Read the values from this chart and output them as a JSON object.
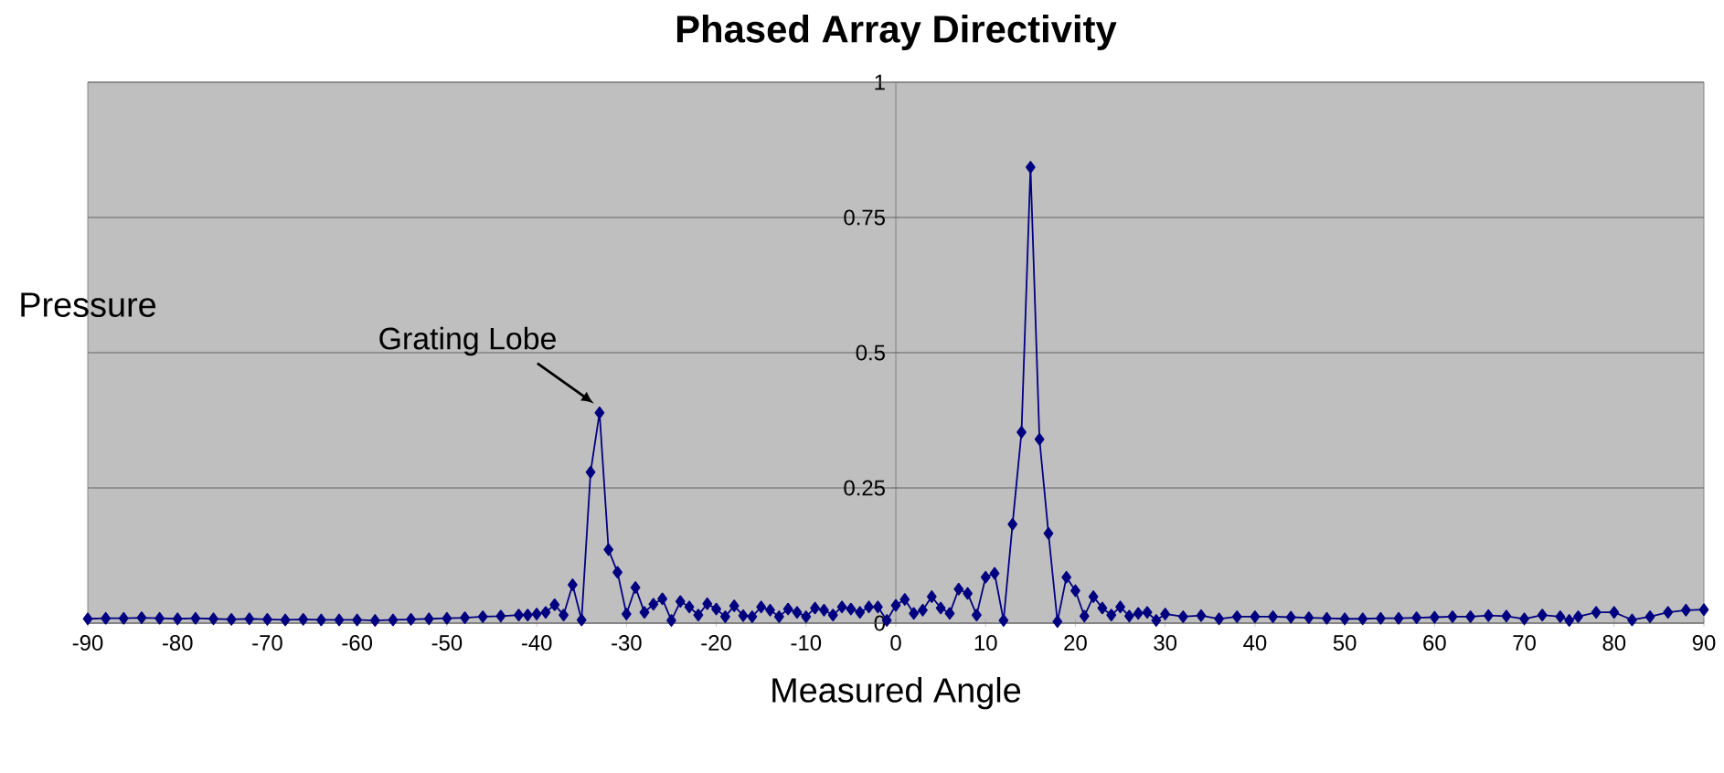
{
  "chart_data": {
    "type": "line",
    "title": "Phased Array Directivity",
    "xlabel": "Measured Angle",
    "ylabel": "Pressure",
    "annotations": [
      {
        "text": "Grating Lobe",
        "x": -33,
        "y": 0.389
      }
    ],
    "x": [
      -90,
      -88,
      -86,
      -84,
      -82,
      -80,
      -78,
      -76,
      -74,
      -72,
      -70,
      -68,
      -66,
      -64,
      -62,
      -60,
      -58,
      -56,
      -54,
      -52,
      -50,
      -48,
      -46,
      -44,
      -42,
      -41,
      -40,
      -39,
      -38,
      -37,
      -36,
      -35,
      -34,
      -33,
      -32,
      -31,
      -30,
      -29,
      -28,
      -27,
      -26,
      -25,
      -24,
      -23,
      -22,
      -21,
      -20,
      -19,
      -18,
      -17,
      -16,
      -15,
      -14,
      -13,
      -12,
      -11,
      -10,
      -9,
      -8,
      -7,
      -6,
      -5,
      -4,
      -3,
      -2,
      -1,
      0,
      1,
      2,
      3,
      4,
      5,
      6,
      7,
      8,
      9,
      10,
      11,
      12,
      13,
      14,
      15,
      16,
      17,
      18,
      19,
      20,
      21,
      22,
      23,
      24,
      25,
      26,
      27,
      28,
      29,
      30,
      32,
      34,
      36,
      38,
      40,
      42,
      44,
      46,
      48,
      50,
      52,
      54,
      56,
      58,
      60,
      62,
      64,
      66,
      68,
      70,
      72,
      74,
      75,
      76,
      78,
      80,
      82,
      84,
      86,
      88,
      90
    ],
    "series": [
      {
        "color": "#000080",
        "values": [
          0.008,
          0.009,
          0.009,
          0.01,
          0.009,
          0.008,
          0.009,
          0.008,
          0.007,
          0.008,
          0.007,
          0.006,
          0.007,
          0.006,
          0.006,
          0.006,
          0.005,
          0.006,
          0.007,
          0.008,
          0.009,
          0.01,
          0.012,
          0.013,
          0.015,
          0.015,
          0.017,
          0.02,
          0.034,
          0.015,
          0.071,
          0.006,
          0.279,
          0.389,
          0.136,
          0.094,
          0.017,
          0.066,
          0.02,
          0.035,
          0.045,
          0.005,
          0.04,
          0.03,
          0.015,
          0.036,
          0.026,
          0.012,
          0.032,
          0.014,
          0.012,
          0.03,
          0.024,
          0.012,
          0.026,
          0.02,
          0.012,
          0.028,
          0.024,
          0.015,
          0.03,
          0.026,
          0.02,
          0.03,
          0.03,
          0.005,
          0.033,
          0.044,
          0.018,
          0.024,
          0.049,
          0.028,
          0.018,
          0.063,
          0.055,
          0.015,
          0.085,
          0.092,
          0.005,
          0.183,
          0.353,
          0.843,
          0.34,
          0.166,
          0.003,
          0.085,
          0.06,
          0.013,
          0.049,
          0.028,
          0.015,
          0.03,
          0.013,
          0.018,
          0.02,
          0.005,
          0.017,
          0.012,
          0.014,
          0.008,
          0.012,
          0.012,
          0.012,
          0.011,
          0.01,
          0.009,
          0.008,
          0.008,
          0.009,
          0.009,
          0.01,
          0.011,
          0.012,
          0.012,
          0.014,
          0.013,
          0.008,
          0.015,
          0.012,
          0.005,
          0.012,
          0.02,
          0.02,
          0.006,
          0.012,
          0.02,
          0.024,
          0.025
        ]
      }
    ],
    "xlim": [
      -90,
      90
    ],
    "ylim": [
      0,
      1
    ],
    "xticks": [
      -90,
      -80,
      -70,
      -60,
      -50,
      -40,
      -30,
      -20,
      -10,
      0,
      10,
      20,
      30,
      40,
      50,
      60,
      70,
      80,
      90
    ],
    "yticks": [
      0,
      0.25,
      0.5,
      0.75,
      1
    ],
    "grid": "y",
    "marker": "diamond"
  }
}
